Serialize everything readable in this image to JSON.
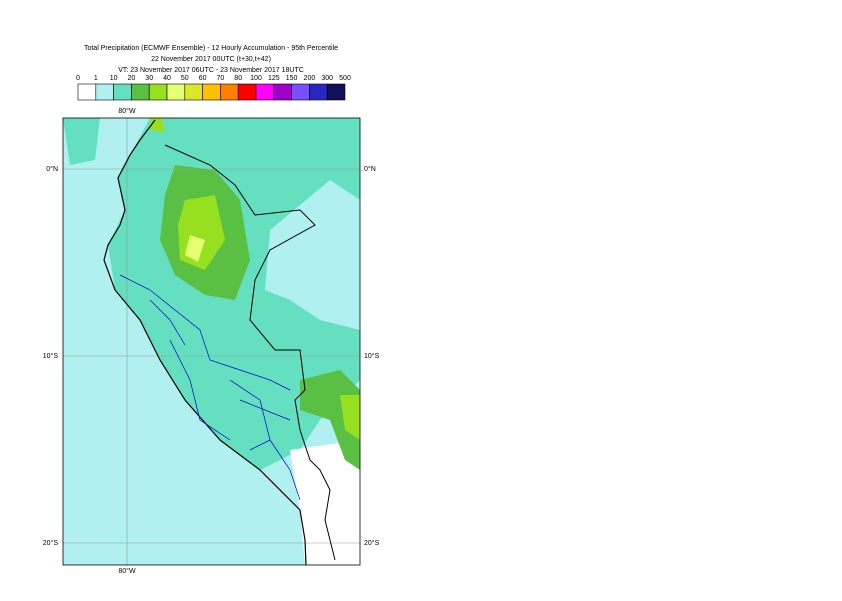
{
  "header": {
    "title": "Total Precipitation (ECMWF Ensemble) - 12 Hourly Accumulation - 95th Percentile",
    "base": "22 November 2017 00UTC (t+30,t+42)",
    "valid": "VT: 23 November 2017 06UTC - 23 November 2017 18UTC"
  },
  "legend": {
    "labels": [
      0,
      1,
      10,
      20,
      30,
      40,
      50,
      60,
      70,
      80,
      100,
      125,
      150,
      200,
      300,
      500
    ],
    "colors": [
      "#ffffff",
      "#b0f0f0",
      "#64e0c0",
      "#5ac044",
      "#96e020",
      "#e4ff70",
      "#dce628",
      "#ffc000",
      "#ff8000",
      "#ff0000",
      "#ff00ff",
      "#a000c8",
      "#7850ff",
      "#2828c0",
      "#101058"
    ]
  },
  "map": {
    "lon_labels": [
      "80°W"
    ],
    "lat_labels": [
      "0°N",
      "10°S",
      "20°S"
    ]
  }
}
